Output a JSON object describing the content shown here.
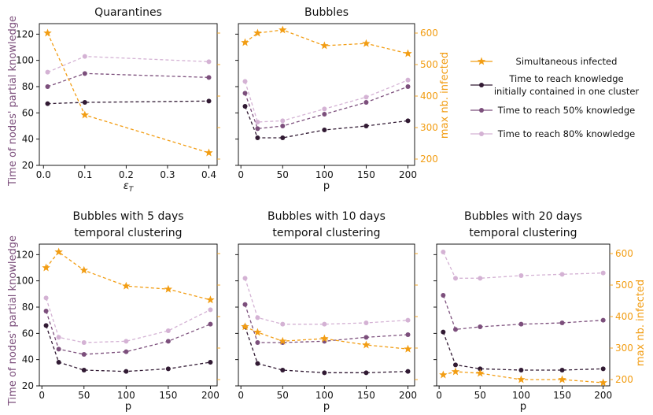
{
  "figure": {
    "left_ylabel": "Time of nodes' partial knowledge",
    "right_ylabel": "max nb. infected",
    "colors": {
      "simultaneous": "#f29d13",
      "initial": "#311a33",
      "p50": "#7c4f7c",
      "p80": "#d4b2d4",
      "left_label": "#7c4f7c",
      "right_label": "#f29d13"
    }
  },
  "legend": {
    "items": [
      {
        "key": "simultaneous",
        "lines": [
          "Simultaneous infected"
        ]
      },
      {
        "key": "initial",
        "lines": [
          "Time to reach knowledge",
          "initially contained in one cluster"
        ]
      },
      {
        "key": "p50",
        "lines": [
          "Time to reach 50% knowledge"
        ]
      },
      {
        "key": "p80",
        "lines": [
          "Time to reach 80% knowledge"
        ]
      }
    ]
  },
  "chart_data": [
    {
      "type": "line",
      "title": [
        "Quarantines"
      ],
      "xlabel": "ε_T",
      "x": [
        0.01,
        0.1,
        0.4
      ],
      "xlim": [
        -0.01,
        0.42
      ],
      "xticks": [
        0.0,
        0.1,
        0.2,
        0.3,
        0.4
      ],
      "xtick_labels": [
        "0.0",
        "0.1",
        "0.2",
        "0.3",
        "0.4"
      ],
      "ylim": [
        20,
        128
      ],
      "yticks": [
        20,
        40,
        60,
        80,
        100,
        120
      ],
      "right_ylim": [
        180,
        630
      ],
      "right_yticks": [],
      "show_left_label": true,
      "show_right_label": false,
      "show_left_ticklabels": true,
      "series": [
        {
          "name": "Time to reach knowledge initially contained in one cluster",
          "key": "initial",
          "axis": "left",
          "values": [
            67,
            68,
            69
          ]
        },
        {
          "name": "Time to reach 50% knowledge",
          "key": "p50",
          "axis": "left",
          "values": [
            80,
            90,
            87
          ]
        },
        {
          "name": "Time to reach 80% knowledge",
          "key": "p80",
          "axis": "left",
          "values": [
            91,
            103,
            99
          ]
        },
        {
          "name": "Simultaneous infected",
          "key": "simultaneous",
          "axis": "right",
          "values": [
            600,
            340,
            220
          ]
        }
      ]
    },
    {
      "type": "line",
      "title": [
        "Bubbles"
      ],
      "xlabel": "p",
      "x": [
        5,
        20,
        50,
        100,
        150,
        200
      ],
      "xlim": [
        -3,
        208
      ],
      "xticks": [
        0,
        50,
        100,
        150,
        200
      ],
      "xtick_labels": [
        "0",
        "50",
        "100",
        "150",
        "200"
      ],
      "ylim": [
        20,
        128
      ],
      "yticks": [
        20,
        40,
        60,
        80,
        100,
        120
      ],
      "right_ylim": [
        180,
        630
      ],
      "right_yticks": [
        200,
        300,
        400,
        500,
        600
      ],
      "show_left_label": false,
      "show_right_label": true,
      "show_left_ticklabels": false,
      "series": [
        {
          "name": "Time to reach knowledge initially contained in one cluster",
          "key": "initial",
          "axis": "left",
          "values": [
            65,
            41,
            41,
            47,
            50,
            54
          ]
        },
        {
          "name": "Time to reach 50% knowledge",
          "key": "p50",
          "axis": "left",
          "values": [
            75,
            48,
            50,
            59,
            68,
            80
          ]
        },
        {
          "name": "Time to reach 80% knowledge",
          "key": "p80",
          "axis": "left",
          "values": [
            84,
            53,
            54,
            63,
            72,
            85
          ]
        },
        {
          "name": "Simultaneous infected",
          "key": "simultaneous",
          "axis": "right",
          "values": [
            570,
            600,
            610,
            560,
            567,
            535
          ]
        }
      ]
    },
    {
      "type": "line",
      "title": [
        "Bubbles with 5 days",
        "temporal clustering"
      ],
      "xlabel": "p",
      "x": [
        5,
        20,
        50,
        100,
        150,
        200
      ],
      "xlim": [
        -3,
        208
      ],
      "xticks": [
        0,
        50,
        100,
        150,
        200
      ],
      "xtick_labels": [
        "0",
        "50",
        "100",
        "150",
        "200"
      ],
      "ylim": [
        20,
        128
      ],
      "yticks": [
        20,
        40,
        60,
        80,
        100,
        120
      ],
      "right_ylim": [
        180,
        630
      ],
      "right_yticks": [],
      "show_left_label": true,
      "show_right_label": false,
      "show_left_ticklabels": true,
      "series": [
        {
          "name": "Time to reach knowledge initially contained in one cluster",
          "key": "initial",
          "axis": "left",
          "values": [
            66,
            38,
            32,
            31,
            33,
            38
          ]
        },
        {
          "name": "Time to reach 50% knowledge",
          "key": "p50",
          "axis": "left",
          "values": [
            77,
            48,
            44,
            46,
            54,
            67
          ]
        },
        {
          "name": "Time to reach 80% knowledge",
          "key": "p80",
          "axis": "left",
          "values": [
            87,
            57,
            53,
            54,
            62,
            78
          ]
        },
        {
          "name": "Simultaneous infected",
          "key": "simultaneous",
          "axis": "right",
          "values": [
            555,
            605,
            547,
            497,
            487,
            453
          ]
        }
      ]
    },
    {
      "type": "line",
      "title": [
        "Bubbles with 10 days",
        "temporal clustering"
      ],
      "xlabel": "p",
      "x": [
        5,
        20,
        50,
        100,
        150,
        200
      ],
      "xlim": [
        -3,
        208
      ],
      "xticks": [
        0,
        50,
        100,
        150,
        200
      ],
      "xtick_labels": [
        "0",
        "50",
        "100",
        "150",
        "200"
      ],
      "ylim": [
        20,
        128
      ],
      "yticks": [
        20,
        40,
        60,
        80,
        100,
        120
      ],
      "right_ylim": [
        180,
        630
      ],
      "right_yticks": [],
      "show_left_label": false,
      "show_right_label": false,
      "show_left_ticklabels": false,
      "series": [
        {
          "name": "Time to reach knowledge initially contained in one cluster",
          "key": "initial",
          "axis": "left",
          "values": [
            65,
            37,
            32,
            30,
            30,
            31
          ]
        },
        {
          "name": "Time to reach 50% knowledge",
          "key": "p50",
          "axis": "left",
          "values": [
            82,
            53,
            53,
            54,
            57,
            59
          ]
        },
        {
          "name": "Time to reach 80% knowledge",
          "key": "p80",
          "axis": "left",
          "values": [
            102,
            72,
            67,
            67,
            68,
            70
          ]
        },
        {
          "name": "Simultaneous infected",
          "key": "simultaneous",
          "axis": "right",
          "values": [
            368,
            350,
            322,
            330,
            310,
            297
          ]
        }
      ]
    },
    {
      "type": "line",
      "title": [
        "Bubbles with 20 days",
        "temporal clustering"
      ],
      "xlabel": "p",
      "x": [
        5,
        20,
        50,
        100,
        150,
        200
      ],
      "xlim": [
        -3,
        208
      ],
      "xticks": [
        0,
        50,
        100,
        150,
        200
      ],
      "xtick_labels": [
        "0",
        "50",
        "100",
        "150",
        "200"
      ],
      "ylim": [
        20,
        128
      ],
      "yticks": [
        20,
        40,
        60,
        80,
        100,
        120
      ],
      "right_ylim": [
        180,
        630
      ],
      "right_yticks": [
        200,
        300,
        400,
        500,
        600
      ],
      "show_left_label": false,
      "show_right_label": true,
      "show_left_ticklabels": false,
      "series": [
        {
          "name": "Time to reach knowledge initially contained in one cluster",
          "key": "initial",
          "axis": "left",
          "values": [
            61,
            36,
            33,
            32,
            32,
            33
          ]
        },
        {
          "name": "Time to reach 50% knowledge",
          "key": "p50",
          "axis": "left",
          "values": [
            89,
            63,
            65,
            67,
            68,
            70
          ]
        },
        {
          "name": "Time to reach 80% knowledge",
          "key": "p80",
          "axis": "left",
          "values": [
            122,
            102,
            102,
            104,
            105,
            106
          ]
        },
        {
          "name": "Simultaneous infected",
          "key": "simultaneous",
          "axis": "right",
          "values": [
            215,
            225,
            220,
            200,
            200,
            190
          ]
        }
      ]
    }
  ]
}
